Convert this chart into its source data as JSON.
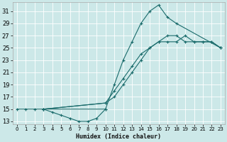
{
  "xlabel": "Humidex (Indice chaleur)",
  "xlim": [
    -0.5,
    23.5
  ],
  "ylim": [
    12.5,
    32.5
  ],
  "yticks": [
    13,
    15,
    17,
    19,
    21,
    23,
    25,
    27,
    29,
    31
  ],
  "xticks": [
    0,
    1,
    2,
    3,
    4,
    5,
    6,
    7,
    8,
    9,
    10,
    11,
    12,
    13,
    14,
    15,
    16,
    17,
    18,
    19,
    20,
    21,
    22,
    23
  ],
  "bg_color": "#cce8e8",
  "line_color": "#1a6b6b",
  "grid_color": "#ffffff",
  "lines": [
    {
      "x": [
        0,
        1,
        2,
        3,
        4,
        5,
        6,
        7,
        8,
        9,
        10
      ],
      "y": [
        15,
        15,
        15,
        15,
        14.5,
        14,
        13.5,
        13,
        13,
        13.5,
        15
      ]
    },
    {
      "x": [
        3,
        10,
        11,
        12,
        13,
        14,
        15,
        16,
        17,
        18,
        23
      ],
      "y": [
        15,
        15,
        19,
        23,
        26,
        29,
        31,
        32,
        30,
        29,
        25
      ]
    },
    {
      "x": [
        3,
        10,
        11,
        12,
        13,
        14,
        15,
        16,
        17,
        18,
        19,
        20,
        21,
        22,
        23
      ],
      "y": [
        15,
        16,
        18,
        20,
        22,
        24,
        25,
        26,
        26,
        26,
        27,
        26,
        26,
        26,
        25
      ]
    },
    {
      "x": [
        3,
        10,
        11,
        12,
        13,
        14,
        15,
        16,
        17,
        18,
        19,
        20,
        21,
        22,
        23
      ],
      "y": [
        15,
        16,
        17,
        19,
        21,
        23,
        25,
        26,
        27,
        27,
        26,
        26,
        26,
        26,
        25
      ]
    }
  ]
}
